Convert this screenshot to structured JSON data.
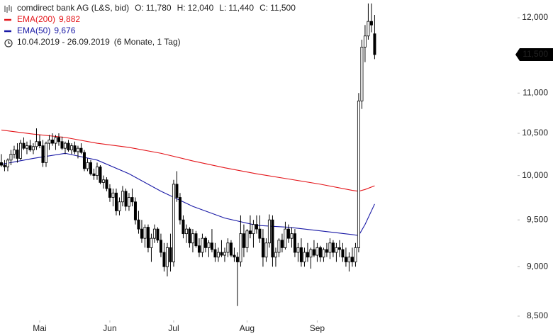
{
  "chart_data": {
    "type": "candlestick",
    "title": "comdirect bank AG (L&S, bid)",
    "summary": [
      {
        "label": "O:",
        "value": "11,780"
      },
      {
        "label": "H:",
        "value": "12,040"
      },
      {
        "label": "L:",
        "value": "11,440"
      },
      {
        "label": "C:",
        "value": "11,500"
      }
    ],
    "date_range": "10.04.2019 - 26.09.2019",
    "period": "(6 Monate, 1 Tag)",
    "log_scale": true,
    "ylim": [
      8307,
      12249
    ],
    "yticks": [
      {
        "value": 8500,
        "label": "8,500"
      },
      {
        "value": 9000,
        "label": "9,000"
      },
      {
        "value": 9500,
        "label": "9,500"
      },
      {
        "value": 10000,
        "label": "10,000"
      },
      {
        "value": 10500,
        "label": "10,500"
      },
      {
        "value": 11000,
        "label": "11,000"
      },
      {
        "value": 12000,
        "label": "12,000"
      }
    ],
    "xlim": [
      -0.44,
      161.8
    ],
    "xticks": [
      {
        "value": 12,
        "label": "Mai"
      },
      {
        "value": 34,
        "label": "Jun"
      },
      {
        "value": 54,
        "label": "Jul"
      },
      {
        "value": 77,
        "label": "Aug"
      },
      {
        "value": 99,
        "label": "Sep"
      }
    ],
    "last_price": {
      "value": 11500,
      "label": "11,500"
    },
    "candle_color": "#000000",
    "up_fill": "#ffffff",
    "down_fill": "#000000",
    "ohlc": [
      [
        10150,
        10250,
        10100,
        10120
      ],
      [
        10120,
        10180,
        10050,
        10100
      ],
      [
        10100,
        10200,
        10050,
        10180
      ],
      [
        10180,
        10300,
        10120,
        10250
      ],
      [
        10250,
        10350,
        10200,
        10300
      ],
      [
        10300,
        10380,
        10150,
        10200
      ],
      [
        10200,
        10420,
        10180,
        10380
      ],
      [
        10380,
        10450,
        10300,
        10320
      ],
      [
        10320,
        10400,
        10250,
        10350
      ],
      [
        10350,
        10420,
        10280,
        10300
      ],
      [
        10300,
        10380,
        10250,
        10340
      ],
      [
        10340,
        10560,
        10300,
        10400
      ],
      [
        10400,
        10480,
        10320,
        10350
      ],
      [
        10350,
        10420,
        10100,
        10150
      ],
      [
        10150,
        10400,
        10100,
        10380
      ],
      [
        10380,
        10480,
        10300,
        10420
      ],
      [
        10420,
        10500,
        10350,
        10380
      ],
      [
        10380,
        10480,
        10300,
        10450
      ],
      [
        10450,
        10500,
        10350,
        10400
      ],
      [
        10400,
        10460,
        10300,
        10320
      ],
      [
        10320,
        10400,
        10250,
        10380
      ],
      [
        10380,
        10420,
        10280,
        10300
      ],
      [
        10300,
        10380,
        10250,
        10350
      ],
      [
        10350,
        10400,
        10250,
        10280
      ],
      [
        10280,
        10350,
        10200,
        10320
      ],
      [
        10320,
        10380,
        10250,
        10270
      ],
      [
        10270,
        10300,
        10050,
        10080
      ],
      [
        10080,
        10200,
        10050,
        10150
      ],
      [
        10150,
        10180,
        10000,
        10020
      ],
      [
        10020,
        10080,
        9950,
        10000
      ],
      [
        10000,
        10150,
        9950,
        10100
      ],
      [
        10100,
        10120,
        9900,
        9920
      ],
      [
        9920,
        10000,
        9850,
        9950
      ],
      [
        9950,
        9980,
        9820,
        9850
      ],
      [
        9850,
        9900,
        9700,
        9750
      ],
      [
        9750,
        9850,
        9650,
        9800
      ],
      [
        9800,
        9850,
        9550,
        9600
      ],
      [
        9600,
        9750,
        9550,
        9700
      ],
      [
        9700,
        9880,
        9650,
        9820
      ],
      [
        9820,
        9850,
        9600,
        9650
      ],
      [
        9650,
        9800,
        9600,
        9750
      ],
      [
        9750,
        9850,
        9650,
        9700
      ],
      [
        9700,
        9750,
        9450,
        9500
      ],
      [
        9500,
        9600,
        9350,
        9400
      ],
      [
        9400,
        9500,
        9250,
        9300
      ],
      [
        9300,
        9450,
        9200,
        9420
      ],
      [
        9420,
        9450,
        9150,
        9200
      ],
      [
        9200,
        9350,
        9050,
        9300
      ],
      [
        9300,
        9450,
        9250,
        9400
      ],
      [
        9400,
        9420,
        9250,
        9280
      ],
      [
        9280,
        9350,
        9100,
        9150
      ],
      [
        9150,
        9250,
        8950,
        9000
      ],
      [
        9000,
        9250,
        8900,
        9200
      ],
      [
        9200,
        9350,
        8950,
        9050
      ],
      [
        9050,
        9950,
        9000,
        9900
      ],
      [
        9900,
        10050,
        9700,
        9750
      ],
      [
        9750,
        9800,
        9450,
        9500
      ],
      [
        9500,
        9550,
        9300,
        9350
      ],
      [
        9350,
        9450,
        9250,
        9400
      ],
      [
        9400,
        9420,
        9200,
        9250
      ],
      [
        9250,
        9400,
        9150,
        9350
      ],
      [
        9350,
        9380,
        9200,
        9220
      ],
      [
        9220,
        9300,
        9100,
        9150
      ],
      [
        9150,
        9350,
        9100,
        9300
      ],
      [
        9300,
        9320,
        9150,
        9200
      ],
      [
        9200,
        9280,
        9100,
        9250
      ],
      [
        9250,
        9400,
        9150,
        9180
      ],
      [
        9180,
        9250,
        9050,
        9100
      ],
      [
        9100,
        9200,
        9050,
        9150
      ],
      [
        9150,
        9280,
        9100,
        9120
      ],
      [
        9120,
        9200,
        9050,
        9150
      ],
      [
        9150,
        9300,
        9100,
        9250
      ],
      [
        9250,
        9280,
        9100,
        9120
      ],
      [
        9120,
        9200,
        9050,
        9100
      ],
      [
        9100,
        9150,
        8600,
        9050
      ],
      [
        9050,
        9550,
        9000,
        9350
      ],
      [
        9350,
        9450,
        9100,
        9200
      ],
      [
        9200,
        9400,
        9150,
        9380
      ],
      [
        9380,
        9550,
        9300,
        9350
      ],
      [
        9350,
        9500,
        9200,
        9450
      ],
      [
        9450,
        9550,
        9350,
        9400
      ],
      [
        9400,
        9550,
        9250,
        9300
      ],
      [
        9300,
        9400,
        9000,
        9100
      ],
      [
        9100,
        9300,
        9050,
        9250
      ],
      [
        9250,
        9560,
        9200,
        9500
      ],
      [
        9500,
        9550,
        9000,
        9100
      ],
      [
        9100,
        9200,
        9000,
        9150
      ],
      [
        9150,
        9300,
        9100,
        9280
      ],
      [
        9280,
        9350,
        9150,
        9200
      ],
      [
        9200,
        9480,
        9180,
        9400
      ],
      [
        9400,
        9450,
        9250,
        9300
      ],
      [
        9300,
        9420,
        9200,
        9350
      ],
      [
        9350,
        9400,
        9100,
        9150
      ],
      [
        9150,
        9250,
        9050,
        9200
      ],
      [
        9200,
        9300,
        9000,
        9050
      ],
      [
        9050,
        9200,
        9000,
        9150
      ],
      [
        9150,
        9250,
        9050,
        9100
      ],
      [
        9100,
        9200,
        8980,
        9180
      ],
      [
        9180,
        9280,
        9100,
        9120
      ],
      [
        9120,
        9250,
        9050,
        9200
      ],
      [
        9200,
        9220,
        9050,
        9100
      ],
      [
        9100,
        9200,
        9050,
        9180
      ],
      [
        9180,
        9250,
        9100,
        9150
      ],
      [
        9150,
        9300,
        9080,
        9250
      ],
      [
        9250,
        9280,
        9100,
        9150
      ],
      [
        9150,
        9250,
        9050,
        9200
      ],
      [
        9200,
        9280,
        9100,
        9180
      ],
      [
        9180,
        9250,
        9050,
        9100
      ],
      [
        9100,
        9200,
        9000,
        9050
      ],
      [
        9050,
        9150,
        8950,
        9100
      ],
      [
        9100,
        9200,
        9000,
        9050
      ],
      [
        9050,
        9250,
        9000,
        9200
      ],
      [
        9200,
        11000,
        9150,
        10900
      ],
      [
        10900,
        11700,
        10800,
        11600
      ],
      [
        11600,
        11900,
        11400,
        11750
      ],
      [
        11750,
        12200,
        11700,
        11950
      ],
      [
        11950,
        12200,
        11800,
        11900
      ],
      [
        11780,
        12040,
        11440,
        11500
      ]
    ],
    "series": [
      {
        "name": "EMA(200)",
        "color": "#e4161b",
        "last": "9,882",
        "x": [
          0,
          10,
          20,
          30,
          40,
          50,
          60,
          70,
          80,
          90,
          100,
          110,
          112,
          114,
          117
        ],
        "values": [
          10540,
          10490,
          10450,
          10380,
          10330,
          10260,
          10170,
          10090,
          10020,
          9960,
          9900,
          9830,
          9820,
          9840,
          9882
        ]
      },
      {
        "name": "EMA(50)",
        "color": "#1a1aa6",
        "last": "9,676",
        "x": [
          0,
          10,
          20,
          30,
          40,
          50,
          60,
          70,
          80,
          90,
          100,
          110,
          112,
          114,
          117
        ],
        "values": [
          10130,
          10200,
          10260,
          10180,
          10020,
          9820,
          9650,
          9520,
          9440,
          9420,
          9380,
          9340,
          9330,
          9450,
          9676
        ]
      }
    ]
  }
}
